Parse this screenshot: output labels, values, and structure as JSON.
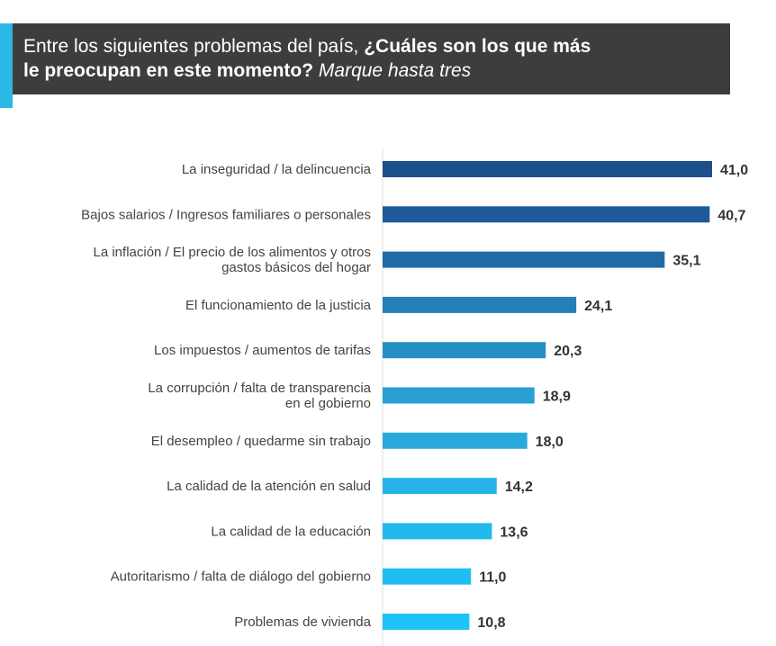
{
  "header": {
    "normal": "Entre los siguientes problemas del país, ",
    "bold_line1": "¿Cuáles son los que más",
    "bold_line2": "le preocupan en este momento?",
    "italic": " Marque hasta tres"
  },
  "colors": {
    "header_bg": "#3d3d3d",
    "accent": "#2ab8e6"
  },
  "chart_data": {
    "type": "bar",
    "orientation": "horizontal",
    "title": "",
    "xlabel": "",
    "ylabel": "",
    "xlim": [
      0,
      41
    ],
    "grid": false,
    "categories": [
      [
        "La inseguridad / la delincuencia"
      ],
      [
        "Bajos salarios / Ingresos familiares o personales"
      ],
      [
        "La inflación / El precio de los alimentos y otros",
        "gastos básicos del hogar"
      ],
      [
        "El funcionamiento de la justicia"
      ],
      [
        "Los impuestos / aumentos de tarifas"
      ],
      [
        "La corrupción / falta de transparencia",
        "en el gobierno"
      ],
      [
        "El desempleo / quedarme sin trabajo"
      ],
      [
        "La calidad de la atención en salud"
      ],
      [
        "La calidad de la educación"
      ],
      [
        "Autoritarismo / falta de diálogo del gobierno"
      ],
      [
        "Problemas de vivienda"
      ]
    ],
    "values": [
      41.0,
      40.7,
      35.1,
      24.1,
      20.3,
      18.9,
      18.0,
      14.2,
      13.6,
      11.0,
      10.8
    ],
    "value_labels": [
      "41,0",
      "40,7",
      "35,1",
      "24,1",
      "20,3",
      "18,9",
      "18,0",
      "14,2",
      "13,6",
      "11,0",
      "10,8"
    ],
    "bar_colors": [
      "#1c4f8c",
      "#1e5a97",
      "#206ba6",
      "#2380b8",
      "#2690c6",
      "#299fd3",
      "#2aa9dc",
      "#25b3e8",
      "#22b9ee",
      "#1fbdf2",
      "#1ec3f7"
    ]
  }
}
